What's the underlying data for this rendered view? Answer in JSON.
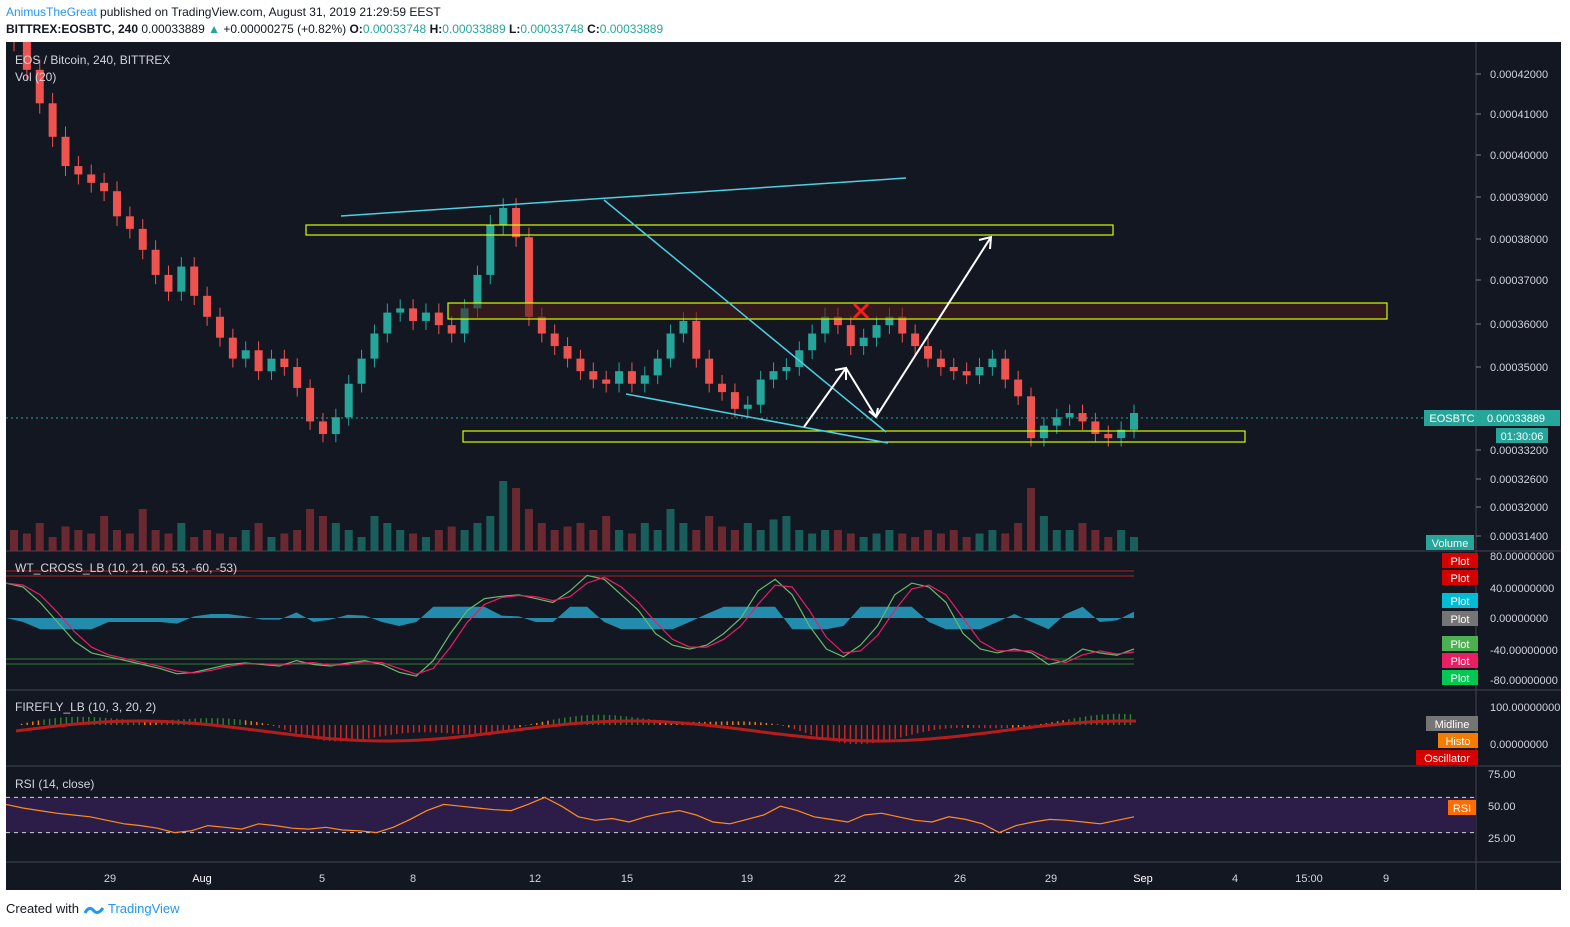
{
  "header": {
    "author": "AnimusTheGreat",
    "published": "published on TradingView.com, August 31, 2019 21:29:59 EEST",
    "symbol_line": "BITTREX:EOSBTC, 240",
    "price": "0.00033889",
    "up_arrow": "▲",
    "change": "+0.00000275 (+0.82%)",
    "o_label": "O:",
    "o": "0.00033748",
    "h_label": "H:",
    "h": "0.00033889",
    "l_label": "L:",
    "l": "0.00033748",
    "c_label": "C:",
    "c": "0.00033889"
  },
  "footer": {
    "created_with": "Created with",
    "brand": "TradingView"
  },
  "colors": {
    "bg": "#131722",
    "grid": "#2a2e39",
    "up": "#26a69a",
    "down": "#ef5350",
    "zone_yellow": "#d4ff00",
    "zone_red": "#4a1c1c",
    "cyan": "#4dd0e1",
    "white": "#ffffff",
    "rsi_band": "#2b1d48",
    "rsi_line": "#ff8c1a"
  },
  "chart_data": [
    {
      "type": "candlestick",
      "title": "EOS / Bitcoin, 240, BITTREX",
      "subtitle": "Vol (20)",
      "y_ticks": [
        "0.00042000",
        "0.00041000",
        "0.00040000",
        "0.00039000",
        "0.00038000",
        "0.00037000",
        "0.00036000",
        "0.00035000",
        "0.00033200",
        "0.00032600",
        "0.00032000",
        "0.00031400"
      ],
      "x_ticks": [
        "29",
        "Aug",
        "5",
        "8",
        "12",
        "15",
        "19",
        "22",
        "26",
        "29",
        "Sep",
        "4",
        "15:00",
        "9"
      ],
      "close_series": [
        0.000428,
        0.000421,
        0.000413,
        0.000405,
        0.000398,
        0.000396,
        0.000394,
        0.000392,
        0.000386,
        0.000383,
        0.000378,
        0.000372,
        0.000368,
        0.000374,
        0.000367,
        0.000362,
        0.000357,
        0.000352,
        0.000354,
        0.000349,
        0.000352,
        0.00035,
        0.000345,
        0.000337,
        0.000334,
        0.000338,
        0.000346,
        0.000352,
        0.000358,
        0.000363,
        0.000364,
        0.000361,
        0.000363,
        0.00036,
        0.000358,
        0.000364,
        0.000372,
        0.000384,
        0.000388,
        0.000381,
        0.000362,
        0.000358,
        0.000355,
        0.000352,
        0.000349,
        0.000347,
        0.000346,
        0.000349,
        0.000346,
        0.000348,
        0.000352,
        0.000358,
        0.000361,
        0.000352,
        0.000346,
        0.000344,
        0.00034,
        0.000341,
        0.000347,
        0.000349,
        0.00035,
        0.000354,
        0.000358,
        0.000362,
        0.00036,
        0.000355,
        0.000357,
        0.00036,
        0.000362,
        0.000358,
        0.000355,
        0.000352,
        0.00035,
        0.000349,
        0.000348,
        0.00035,
        0.000352,
        0.000347,
        0.000343,
        0.000333,
        0.000336,
        0.000338,
        0.000339,
        0.000337,
        0.000334,
        0.000333,
        0.000335,
        0.000339
      ],
      "volume_series": [
        0.3,
        0.25,
        0.4,
        0.2,
        0.35,
        0.3,
        0.25,
        0.5,
        0.3,
        0.25,
        0.6,
        0.3,
        0.25,
        0.4,
        0.2,
        0.3,
        0.25,
        0.2,
        0.3,
        0.4,
        0.2,
        0.25,
        0.3,
        0.6,
        0.5,
        0.4,
        0.3,
        0.2,
        0.5,
        0.4,
        0.3,
        0.25,
        0.2,
        0.3,
        0.35,
        0.3,
        0.4,
        0.5,
        1.0,
        0.9,
        0.6,
        0.4,
        0.3,
        0.35,
        0.4,
        0.3,
        0.5,
        0.3,
        0.25,
        0.4,
        0.3,
        0.6,
        0.4,
        0.3,
        0.5,
        0.35,
        0.3,
        0.4,
        0.3,
        0.45,
        0.5,
        0.3,
        0.25,
        0.3,
        0.3,
        0.25,
        0.2,
        0.25,
        0.3,
        0.25,
        0.2,
        0.3,
        0.25,
        0.3,
        0.2,
        0.25,
        0.3,
        0.25,
        0.4,
        0.9,
        0.5,
        0.3,
        0.3,
        0.4,
        0.3,
        0.2,
        0.3,
        0.2
      ],
      "last_price_label": "EOSBTC",
      "last_price": "0.00033889",
      "countdown": "01:30:06",
      "volume_label": "Volume"
    },
    {
      "type": "line",
      "title": "WT_CROSS_LB (10, 21, 60, 53, -60, -53)",
      "y_ticks": [
        "80.00000000",
        "40.00000000",
        "0.00000000",
        "-40.00000000",
        "-80.00000000"
      ],
      "legend": [
        "Plot",
        "Plot",
        "Plot",
        "Plot",
        "Plot",
        "Plot",
        "Plot"
      ],
      "series": [
        {
          "values": [
            45,
            40,
            20,
            -5,
            -30,
            -45,
            -50,
            -55,
            -60,
            -65,
            -72,
            -70,
            -65,
            -60,
            -58,
            -60,
            -62,
            -55,
            -60,
            -62,
            -58,
            -55,
            -60,
            -70,
            -75,
            -55,
            -20,
            10,
            25,
            28,
            30,
            25,
            20,
            35,
            55,
            50,
            30,
            10,
            -20,
            -35,
            -40,
            -35,
            -20,
            0,
            35,
            50,
            30,
            -10,
            -40,
            -50,
            -35,
            -10,
            30,
            45,
            40,
            20,
            -20,
            -40,
            -45,
            -40,
            -45,
            -60,
            -55,
            -40,
            -45,
            -48,
            -40
          ]
        }
      ]
    },
    {
      "type": "bar",
      "title": "FIREFLY_LB (10, 3, 20, 2)",
      "y_ticks": [
        "100.00000000",
        "0.00000000"
      ],
      "legend": [
        "Midline",
        "Histo",
        "Oscillator"
      ]
    },
    {
      "type": "line",
      "title": "RSI (14, close)",
      "y_ticks": [
        "75.00",
        "50.00",
        "25.00"
      ],
      "series": [
        {
          "name": "RSI",
          "values": [
            62,
            58,
            55,
            52,
            50,
            48,
            44,
            40,
            38,
            35,
            30,
            32,
            38,
            36,
            34,
            40,
            38,
            35,
            34,
            36,
            33,
            32,
            30,
            36,
            45,
            55,
            62,
            60,
            58,
            56,
            55,
            62,
            70,
            60,
            48,
            44,
            46,
            42,
            48,
            52,
            55,
            50,
            42,
            40,
            45,
            50,
            60,
            55,
            48,
            45,
            42,
            50,
            52,
            48,
            44,
            42,
            48,
            45,
            40,
            30,
            38,
            42,
            45,
            44,
            42,
            40,
            44,
            48
          ]
        }
      ],
      "ylim": [
        0,
        100
      ]
    }
  ]
}
